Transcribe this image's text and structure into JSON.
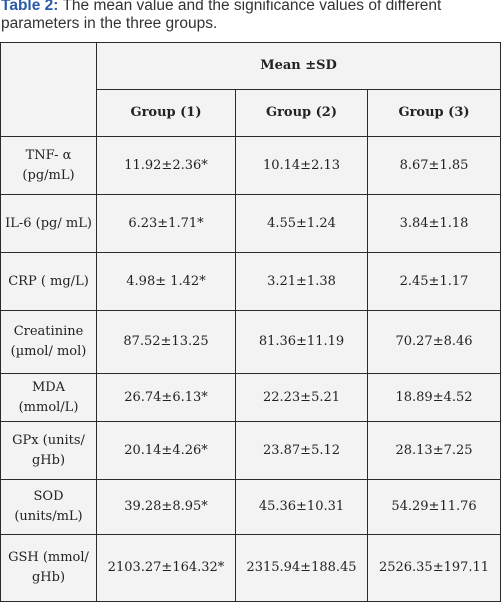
{
  "caption": {
    "label": "Table 2:",
    "text": " The mean value and the significance values of different parameters in the three groups."
  },
  "table": {
    "header_main": "Mean ±SD",
    "groups": [
      "Group (1)",
      "Group (2)",
      "Group (3)"
    ],
    "rows": [
      {
        "param": "TNF- α (pg/mL)",
        "values": [
          "11.92±2.36*",
          "10.14±2.13",
          "8.67±1.85"
        ]
      },
      {
        "param": "IL-6 (pg/ mL)",
        "values": [
          "6.23±1.71*",
          "4.55±1.24",
          "3.84±1.18"
        ]
      },
      {
        "param": "CRP ( mg/L)",
        "values": [
          "4.98± 1.42*",
          "3.21±1.38",
          "2.45±1.17"
        ]
      },
      {
        "param": "Creatinine (µmol/ mol)",
        "values": [
          "87.52±13.25",
          "81.36±11.19",
          "70.27±8.46"
        ]
      },
      {
        "param": "MDA (mmol/L)",
        "values": [
          "26.74±6.13*",
          "22.23±5.21",
          "18.89±4.52"
        ]
      },
      {
        "param": "GPx (units/ gHb)",
        "values": [
          "20.14±4.26*",
          "23.87±5.12",
          "28.13±7.25"
        ]
      },
      {
        "param": "SOD (units/mL)",
        "values": [
          "39.28±8.95*",
          "45.36±10.31",
          "54.29±11.76"
        ]
      },
      {
        "param": "GSH (mmol/ gHb)",
        "values": [
          "2103.27±164.32*",
          "2315.94±188.45",
          "2526.35±197.11"
        ]
      }
    ]
  }
}
